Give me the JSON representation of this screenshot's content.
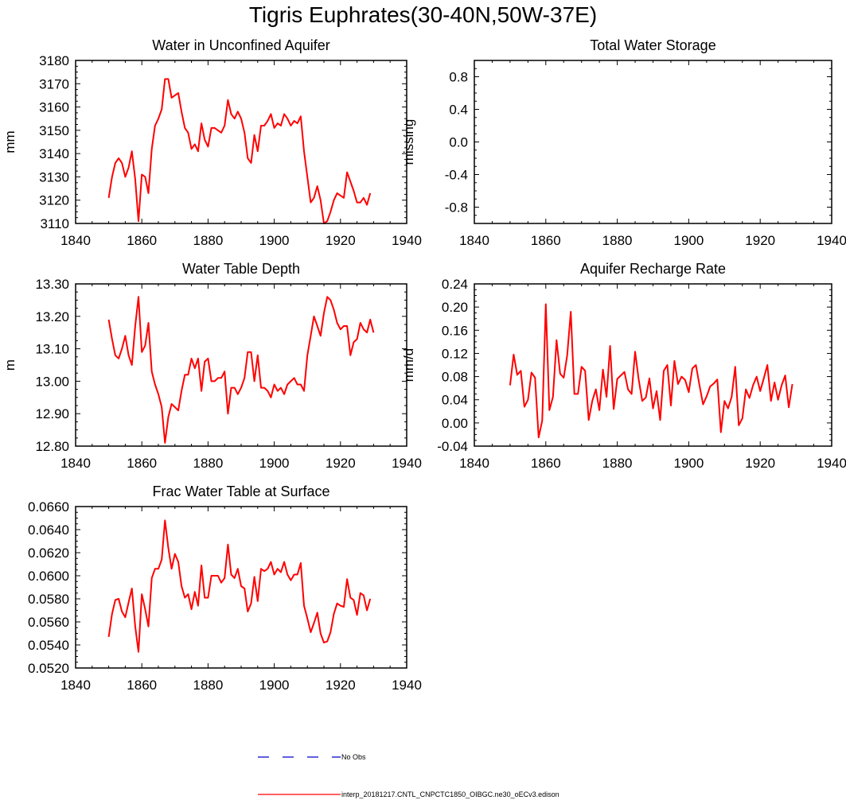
{
  "figure": {
    "title": "Tigris Euphrates(30-40N,50W-37E)",
    "line_color": "#ff0000",
    "obs_color": "#0000cc"
  },
  "chart_data": [
    {
      "type": "line",
      "title": "Water in Unconfined Aquifer",
      "xlabel": "",
      "ylabel": "mm",
      "xlim": [
        1840,
        1940
      ],
      "ylim": [
        3110,
        3180
      ],
      "xticks": [
        1840,
        1860,
        1880,
        1900,
        1920,
        1940
      ],
      "yticks": [
        3110,
        3120,
        3130,
        3140,
        3150,
        3160,
        3170,
        3180
      ],
      "ytick_labels": [
        "3110",
        "3120",
        "3130",
        "3140",
        "3150",
        "3160",
        "3170",
        "3180"
      ],
      "series": [
        {
          "name": "interp_20181217.CNTL_CNPCTC1850_OIBGC.ne30_oECv3.edison",
          "x_start": 1850,
          "values": [
            3121,
            3130,
            3136,
            3138,
            3136,
            3130,
            3134,
            3141,
            3129,
            3111,
            3131,
            3130,
            3123,
            3142,
            3152,
            3155,
            3159,
            3172,
            3172,
            3164,
            3165,
            3166,
            3158,
            3151,
            3149,
            3142,
            3144,
            3141,
            3153,
            3146,
            3143,
            3151,
            3151,
            3150,
            3149,
            3152,
            3163,
            3157,
            3155,
            3158,
            3155,
            3149,
            3138,
            3136,
            3148,
            3141,
            3152,
            3152,
            3154,
            3157,
            3151,
            3153,
            3152,
            3157,
            3155,
            3152,
            3154,
            3153,
            3156,
            3141,
            3130,
            3119,
            3121,
            3126,
            3120,
            3110,
            3111,
            3115,
            3120,
            3123,
            3122,
            3121,
            3132,
            3128,
            3124,
            3119,
            3119,
            3121,
            3118,
            3123
          ]
        }
      ]
    },
    {
      "type": "line",
      "title": "Total Water Storage",
      "xlabel": "",
      "ylabel": "missing",
      "xlim": [
        1840,
        1940
      ],
      "ylim": [
        -1.0,
        1.0
      ],
      "xticks": [
        1840,
        1860,
        1880,
        1900,
        1920,
        1940
      ],
      "yticks": [
        -0.8,
        -0.4,
        0.0,
        0.4,
        0.8
      ],
      "ytick_labels": [
        "-0.8",
        "-0.4",
        "0.0",
        "0.4",
        "0.8"
      ],
      "series": []
    },
    {
      "type": "line",
      "title": "Water Table Depth",
      "xlabel": "",
      "ylabel": "m",
      "xlim": [
        1840,
        1940
      ],
      "ylim": [
        12.8,
        13.3
      ],
      "xticks": [
        1840,
        1860,
        1880,
        1900,
        1920,
        1940
      ],
      "yticks": [
        12.8,
        12.9,
        13.0,
        13.1,
        13.2,
        13.3
      ],
      "ytick_labels": [
        "12.80",
        "12.90",
        "13.00",
        "13.10",
        "13.20",
        "13.30"
      ],
      "series": [
        {
          "name": "interp_20181217.CNTL_CNPCTC1850_OIBGC.ne30_oECv3.edison",
          "x_start": 1850,
          "values": [
            13.19,
            13.13,
            13.08,
            13.07,
            13.1,
            13.14,
            13.08,
            13.05,
            13.17,
            13.26,
            13.09,
            13.11,
            13.18,
            13.03,
            12.99,
            12.96,
            12.92,
            12.81,
            12.89,
            12.93,
            12.92,
            12.91,
            12.97,
            13.02,
            13.02,
            13.07,
            13.04,
            13.07,
            12.97,
            13.06,
            13.07,
            13.0,
            13.0,
            13.01,
            13.01,
            13.03,
            12.9,
            12.98,
            12.98,
            12.96,
            12.98,
            13.01,
            13.09,
            13.09,
            13.0,
            13.08,
            12.98,
            12.98,
            12.97,
            12.95,
            12.99,
            12.97,
            12.98,
            12.96,
            12.99,
            13.0,
            13.01,
            12.99,
            12.99,
            12.97,
            13.08,
            13.14,
            13.2,
            13.17,
            13.14,
            13.21,
            13.26,
            13.25,
            13.22,
            13.18,
            13.16,
            13.17,
            13.17,
            13.08,
            13.12,
            13.13,
            13.18,
            13.16,
            13.15,
            13.19,
            13.15
          ]
        }
      ]
    },
    {
      "type": "line",
      "title": "Aquifer Recharge Rate",
      "xlabel": "",
      "ylabel": "mm/d",
      "xlim": [
        1840,
        1940
      ],
      "ylim": [
        -0.04,
        0.24
      ],
      "xticks": [
        1840,
        1860,
        1880,
        1900,
        1920,
        1940
      ],
      "yticks": [
        -0.04,
        0.0,
        0.04,
        0.08,
        0.12,
        0.16,
        0.2,
        0.24
      ],
      "ytick_labels": [
        "-0.04",
        "0.00",
        "0.04",
        "0.08",
        "0.12",
        "0.16",
        "0.20",
        "0.24"
      ],
      "series": [
        {
          "name": "interp_20181217.CNTL_CNPCTC1850_OIBGC.ne30_oECv3.edison",
          "x_start": 1850,
          "values": [
            0.065,
            0.118,
            0.083,
            0.09,
            0.028,
            0.04,
            0.087,
            0.078,
            -0.025,
            0.004,
            0.205,
            0.022,
            0.045,
            0.143,
            0.085,
            0.078,
            0.117,
            0.192,
            0.05,
            0.05,
            0.097,
            0.09,
            0.005,
            0.038,
            0.058,
            0.022,
            0.092,
            0.045,
            0.133,
            0.024,
            0.076,
            0.082,
            0.088,
            0.058,
            0.05,
            0.123,
            0.075,
            0.038,
            0.044,
            0.077,
            0.025,
            0.055,
            0.005,
            0.09,
            0.1,
            0.03,
            0.107,
            0.067,
            0.08,
            0.074,
            0.053,
            0.094,
            0.1,
            0.065,
            0.032,
            0.046,
            0.063,
            0.068,
            0.075,
            -0.016,
            0.038,
            0.025,
            0.045,
            0.097,
            -0.004,
            0.008,
            0.058,
            0.043,
            0.065,
            0.08,
            0.055,
            0.077,
            0.1,
            0.038,
            0.07,
            0.04,
            0.065,
            0.082,
            0.027,
            0.067
          ]
        }
      ]
    },
    {
      "type": "line",
      "title": "Frac Water Table at Surface",
      "xlabel": "",
      "ylabel": "",
      "xlim": [
        1840,
        1940
      ],
      "ylim": [
        0.052,
        0.066
      ],
      "xticks": [
        1840,
        1860,
        1880,
        1900,
        1920,
        1940
      ],
      "yticks": [
        0.052,
        0.054,
        0.056,
        0.058,
        0.06,
        0.062,
        0.064,
        0.066
      ],
      "ytick_labels": [
        "0.0520",
        "0.0540",
        "0.0560",
        "0.0580",
        "0.0600",
        "0.0620",
        "0.0640",
        "0.0660"
      ],
      "series": [
        {
          "name": "interp_20181217.CNTL_CNPCTC1850_OIBGC.ne30_oECv3.edison",
          "x_start": 1850,
          "values": [
            0.0547,
            0.0567,
            0.0579,
            0.058,
            0.0569,
            0.0564,
            0.0577,
            0.0589,
            0.0556,
            0.0534,
            0.0584,
            0.0571,
            0.0556,
            0.0598,
            0.0606,
            0.0606,
            0.0614,
            0.0648,
            0.0624,
            0.0606,
            0.0619,
            0.0612,
            0.0591,
            0.0581,
            0.0584,
            0.0571,
            0.0586,
            0.0574,
            0.0609,
            0.0581,
            0.0581,
            0.06,
            0.06,
            0.06,
            0.0594,
            0.0598,
            0.0627,
            0.0601,
            0.0598,
            0.0606,
            0.0591,
            0.0589,
            0.0569,
            0.0576,
            0.0599,
            0.0578,
            0.0606,
            0.0604,
            0.0606,
            0.0612,
            0.0601,
            0.0606,
            0.0603,
            0.0612,
            0.0601,
            0.0596,
            0.0601,
            0.0601,
            0.0611,
            0.0574,
            0.0563,
            0.0551,
            0.0559,
            0.0568,
            0.055,
            0.0542,
            0.0543,
            0.0551,
            0.0567,
            0.0576,
            0.0574,
            0.0573,
            0.0597,
            0.0581,
            0.0579,
            0.0566,
            0.0585,
            0.0583,
            0.057,
            0.058
          ]
        }
      ]
    }
  ],
  "legend": {
    "items": [
      {
        "label": "No Obs",
        "style": "dashed",
        "color": "#0000cc"
      },
      {
        "label": "interp_20181217.CNTL_CNPCTC1850_OIBGC.ne30_oECv3.edison",
        "style": "solid",
        "color": "#ff0000"
      }
    ]
  }
}
